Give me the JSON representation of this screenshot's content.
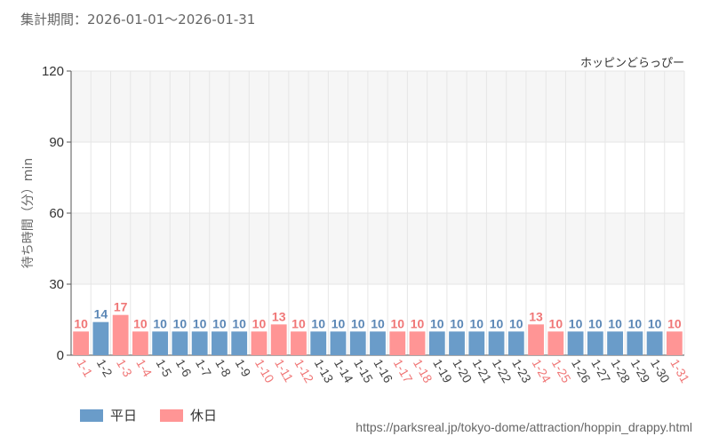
{
  "period_label": "集計期間：2026-01-01〜2026-01-31",
  "source_url": "https://parksreal.jp/tokyo-dome/attraction/hoppin_drappy.html",
  "colors": {
    "weekday": "#6a9cc9",
    "holiday": "#ff9595",
    "weekday_label": "#5b87b6",
    "holiday_label": "#f07777",
    "tick": "#444444",
    "holiday_tick": "#f07777"
  },
  "legend": [
    {
      "label": "平日",
      "kind": "weekday"
    },
    {
      "label": "休日",
      "kind": "holiday"
    }
  ],
  "chart_data": {
    "type": "bar",
    "title": "ホッピンどらっぴー",
    "ylabel": "待ち時間（分）min",
    "ylim": [
      0,
      120
    ],
    "yticks": [
      0,
      30,
      60,
      90,
      120
    ],
    "categories": [
      "1-1",
      "1-2",
      "1-3",
      "1-4",
      "1-5",
      "1-6",
      "1-7",
      "1-8",
      "1-9",
      "1-10",
      "1-11",
      "1-12",
      "1-13",
      "1-14",
      "1-15",
      "1-16",
      "1-17",
      "1-18",
      "1-19",
      "1-20",
      "1-21",
      "1-22",
      "1-23",
      "1-24",
      "1-25",
      "1-26",
      "1-27",
      "1-28",
      "1-29",
      "1-30",
      "1-31"
    ],
    "values": [
      10,
      14,
      17,
      10,
      10,
      10,
      10,
      10,
      10,
      10,
      13,
      10,
      10,
      10,
      10,
      10,
      10,
      10,
      10,
      10,
      10,
      10,
      10,
      13,
      10,
      10,
      10,
      10,
      10,
      10,
      10
    ],
    "day_type": [
      "holiday",
      "weekday",
      "holiday",
      "holiday",
      "weekday",
      "weekday",
      "weekday",
      "weekday",
      "weekday",
      "holiday",
      "holiday",
      "holiday",
      "weekday",
      "weekday",
      "weekday",
      "weekday",
      "holiday",
      "holiday",
      "weekday",
      "weekday",
      "weekday",
      "weekday",
      "weekday",
      "holiday",
      "holiday",
      "weekday",
      "weekday",
      "weekday",
      "weekday",
      "weekday",
      "holiday"
    ],
    "grid": true,
    "legend_position": "bottom-left"
  }
}
